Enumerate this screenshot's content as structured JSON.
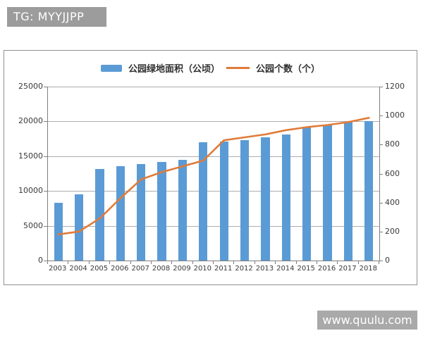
{
  "badge": {
    "text": "TG: MYYJJPP"
  },
  "watermark": {
    "text": "www.quulu.com"
  },
  "colors": {
    "bar": "#5b9bd5",
    "line": "#e07b39",
    "badge_bg": "#9c9c9c",
    "watermark_bg": "#a9a9a9",
    "axis_text": "#3a3a3a",
    "gridline": "#adadad"
  },
  "chart_data": {
    "type": "bar",
    "subtype": "combo-bar-line-dual-axis",
    "title": "",
    "xlabel": "",
    "ylabel_left": "",
    "ylabel_right": "",
    "grid": true,
    "legend_position": "top",
    "categories": [
      "2003",
      "2004",
      "2005",
      "2006",
      "2007",
      "2008",
      "2009",
      "2010",
      "2011",
      "2012",
      "2013",
      "2014",
      "2015",
      "2016",
      "2017",
      "2018"
    ],
    "series": [
      {
        "name": "公园绿地面积（公顷）",
        "type": "bar",
        "axis": "left",
        "color": "#5b9bd5",
        "values": [
          8300,
          9500,
          13200,
          13600,
          13900,
          14200,
          14500,
          17000,
          17100,
          17350,
          17700,
          18100,
          19200,
          19450,
          19900,
          20000
        ]
      },
      {
        "name": "公园个数（个）",
        "type": "line",
        "axis": "right",
        "color": "#e07b39",
        "values": [
          180,
          200,
          290,
          430,
          560,
          610,
          650,
          690,
          830,
          850,
          870,
          900,
          920,
          935,
          955,
          985
        ]
      }
    ],
    "left_axis": {
      "min": 0,
      "max": 25000,
      "step": 5000,
      "ticks": [
        "0",
        "5000",
        "10000",
        "15000",
        "20000",
        "25000"
      ]
    },
    "right_axis": {
      "min": 0,
      "max": 1200,
      "step": 200,
      "ticks": [
        "0",
        "200",
        "400",
        "600",
        "800",
        "1000",
        "1200"
      ]
    }
  }
}
